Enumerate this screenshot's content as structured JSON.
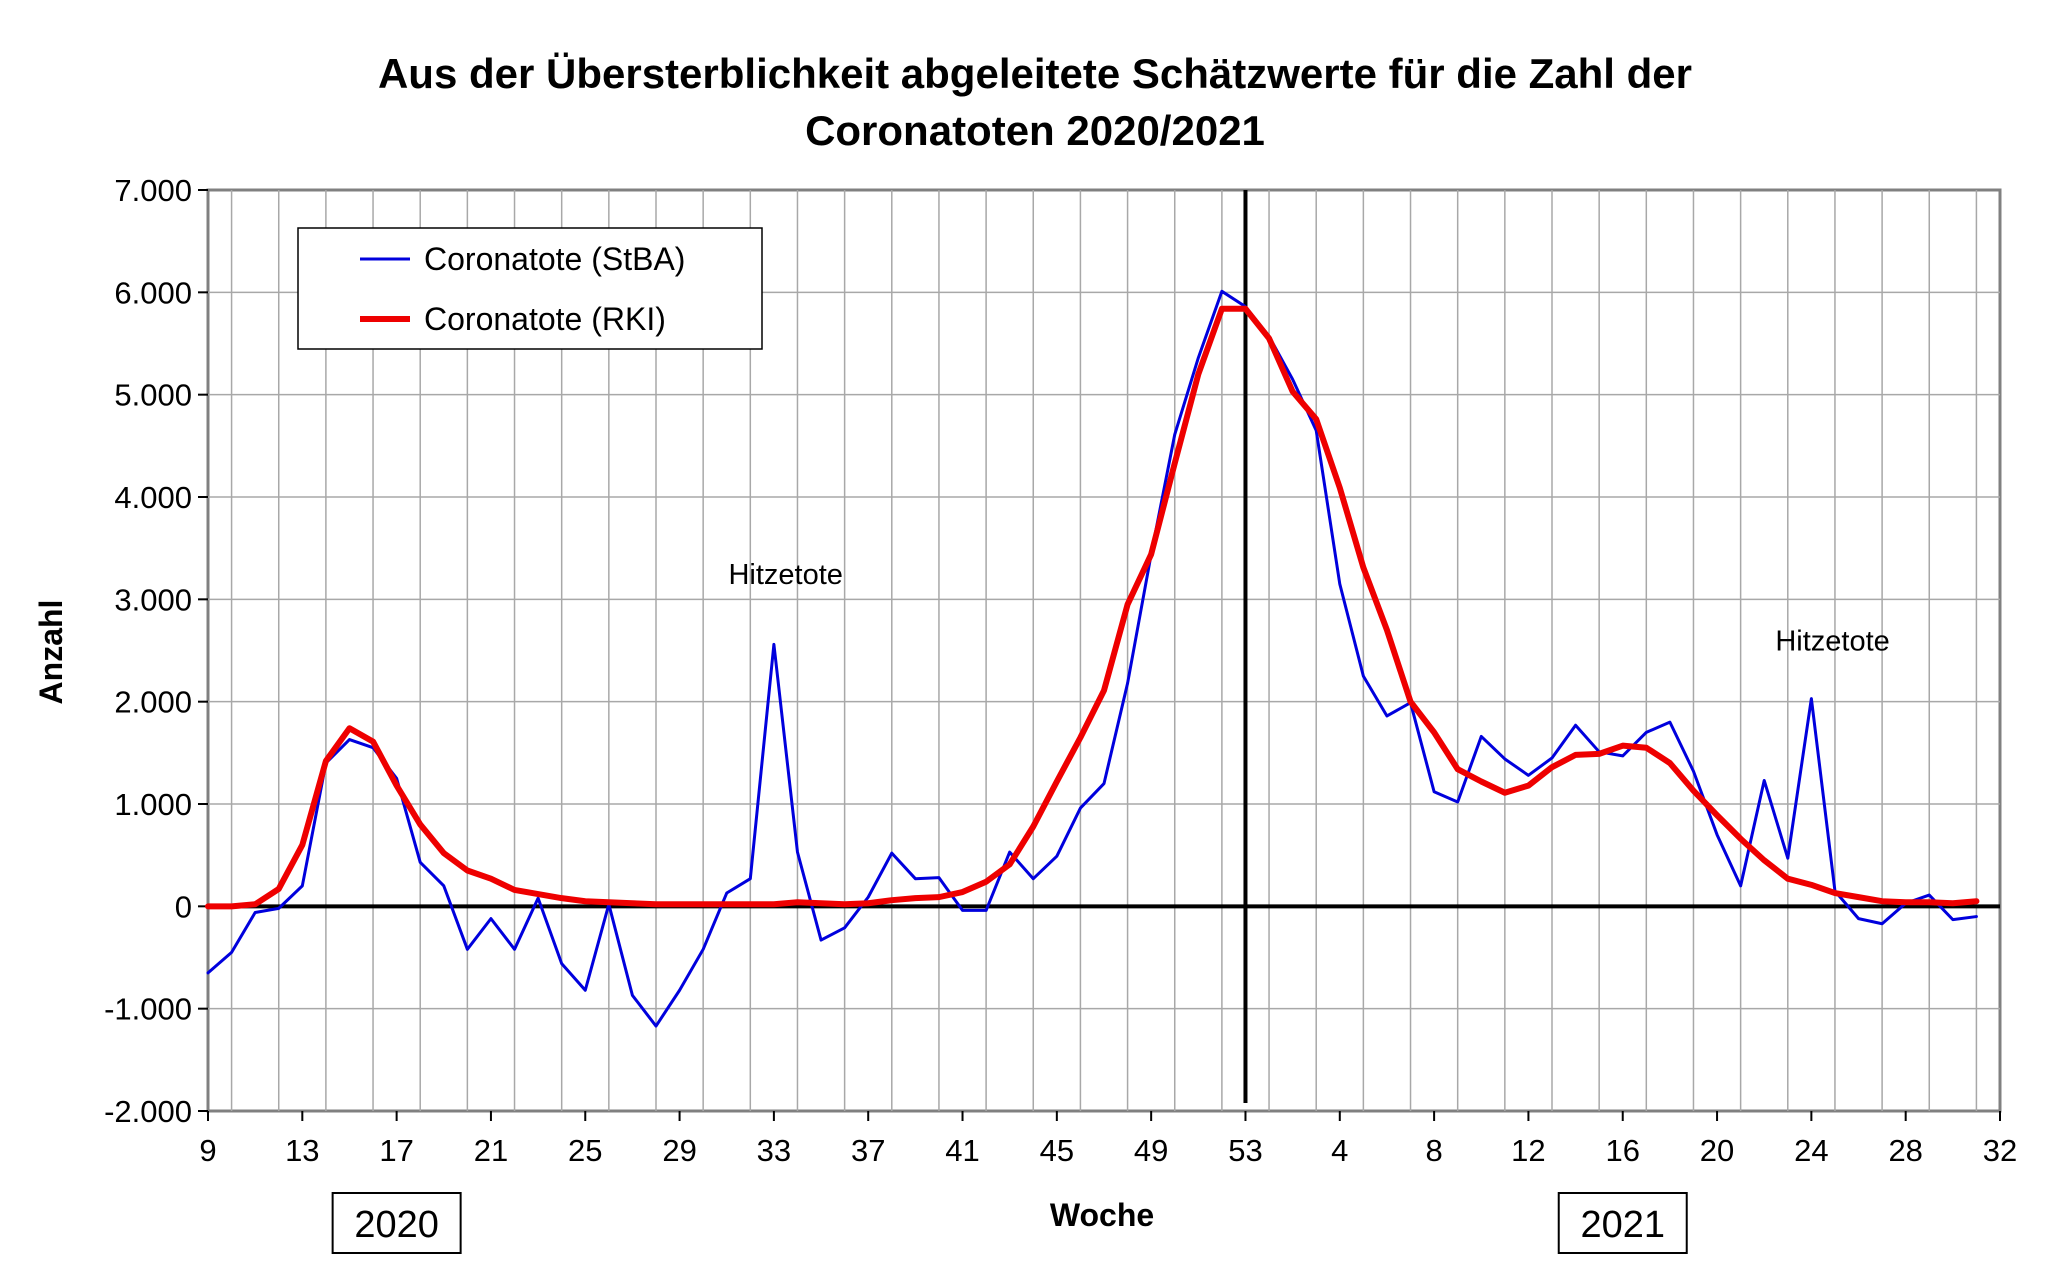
{
  "chart_data": {
    "type": "line",
    "title": [
      "Aus der Übersterblichkeit abgeleitete Schätzwerte für die Zahl der",
      "Coronatoten  2020/2021"
    ],
    "xlabel": "Woche",
    "ylabel": "Anzahl",
    "ylim": [
      -2000,
      7000
    ],
    "xlim": [
      0,
      76
    ],
    "grid": true,
    "legend_position": "top-left",
    "x_ticks": [
      {
        "pos": 0,
        "label": "9"
      },
      {
        "pos": 4,
        "label": "13"
      },
      {
        "pos": 8,
        "label": "17"
      },
      {
        "pos": 12,
        "label": "21"
      },
      {
        "pos": 16,
        "label": "25"
      },
      {
        "pos": 20,
        "label": "29"
      },
      {
        "pos": 24,
        "label": "33"
      },
      {
        "pos": 28,
        "label": "37"
      },
      {
        "pos": 32,
        "label": "41"
      },
      {
        "pos": 36,
        "label": "45"
      },
      {
        "pos": 40,
        "label": "49"
      },
      {
        "pos": 44,
        "label": "53"
      },
      {
        "pos": 48,
        "label": "4"
      },
      {
        "pos": 52,
        "label": "8"
      },
      {
        "pos": 56,
        "label": "12"
      },
      {
        "pos": 60,
        "label": "16"
      },
      {
        "pos": 64,
        "label": "20"
      },
      {
        "pos": 68,
        "label": "24"
      },
      {
        "pos": 72,
        "label": "28"
      },
      {
        "pos": 76,
        "label": "32"
      }
    ],
    "y_ticks": [
      {
        "value": 7000,
        "label": "7.000"
      },
      {
        "value": 6000,
        "label": "6.000"
      },
      {
        "value": 5000,
        "label": "5.000"
      },
      {
        "value": 4000,
        "label": "4.000"
      },
      {
        "value": 3000,
        "label": "3.000"
      },
      {
        "value": 2000,
        "label": "2.000"
      },
      {
        "value": 1000,
        "label": "1.000"
      },
      {
        "value": 0,
        "label": "0"
      },
      {
        "value": -1000,
        "label": "-1.000"
      },
      {
        "value": -2000,
        "label": "-2.000"
      }
    ],
    "year_markers": [
      {
        "label": "2020",
        "pos": 8
      },
      {
        "label": "2021",
        "pos": 60
      }
    ],
    "year_divider_pos": 44,
    "annotations": [
      {
        "text": "Hitzetote",
        "x": 24.5,
        "y": 3150
      },
      {
        "text": "Hitzetote",
        "x": 68.9,
        "y": 2500
      }
    ],
    "series": [
      {
        "name": "Coronatote (StBA)",
        "color": "#0000dd",
        "values": [
          -650,
          -450,
          -60,
          -20,
          200,
          1400,
          1630,
          1550,
          1250,
          430,
          200,
          -420,
          -120,
          -420,
          80,
          -560,
          -820,
          20,
          -870,
          -1170,
          -820,
          -420,
          130,
          270,
          2560,
          530,
          -330,
          -210,
          90,
          520,
          270,
          280,
          -40,
          -40,
          530,
          270,
          490,
          960,
          1200,
          2180,
          3440,
          4610,
          5360,
          6010,
          5860,
          5570,
          5150,
          4650,
          3150,
          2250,
          1860,
          1990,
          1120,
          1020,
          1660,
          1440,
          1280,
          1450,
          1770,
          1510,
          1470,
          1700,
          1800,
          1320,
          700,
          200,
          1230,
          470,
          2030,
          150,
          -120,
          -170,
          30,
          110,
          -130,
          -100
        ]
      },
      {
        "name": "Coronatote (RKI)",
        "color": "#ee0000",
        "values": [
          0,
          0,
          20,
          170,
          600,
          1420,
          1740,
          1610,
          1180,
          800,
          520,
          350,
          270,
          160,
          120,
          80,
          50,
          40,
          30,
          20,
          20,
          20,
          20,
          20,
          20,
          40,
          30,
          20,
          30,
          60,
          80,
          90,
          140,
          240,
          410,
          780,
          1220,
          1650,
          2110,
          2950,
          3440,
          4330,
          5200,
          5840,
          5840,
          5550,
          5030,
          4760,
          4090,
          3310,
          2700,
          2000,
          1700,
          1340,
          1220,
          1110,
          1180,
          1360,
          1480,
          1490,
          1570,
          1550,
          1400,
          1130,
          890,
          660,
          450,
          270,
          210,
          130,
          90,
          50,
          40,
          40,
          30,
          50
        ]
      }
    ]
  }
}
